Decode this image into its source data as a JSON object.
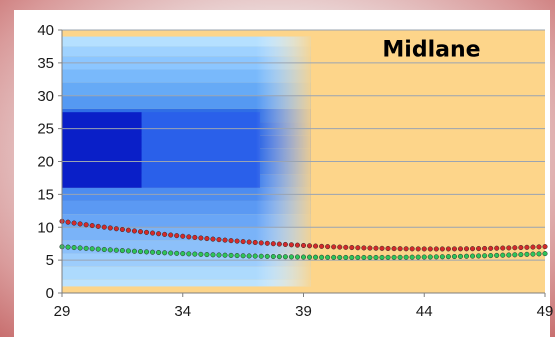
{
  "chart_data": {
    "type": "scatter",
    "title": "",
    "xlabel": "",
    "ylabel": "",
    "xlim": [
      29,
      49
    ],
    "ylim": [
      0,
      40
    ],
    "x_ticks": [
      29,
      34,
      39,
      44,
      49
    ],
    "y_ticks": [
      0,
      5,
      10,
      15,
      20,
      25,
      30,
      35,
      40
    ],
    "x_tick_labels": [
      "29",
      "34",
      "39",
      "44",
      "49"
    ],
    "y_tick_labels": [
      "0",
      "5",
      "10",
      "15",
      "20",
      "25",
      "30",
      "35",
      "40"
    ],
    "grid": "horizontal",
    "legend": "none",
    "annotations": [
      {
        "text": "Midlane",
        "x": 44.3,
        "y": 37.2
      }
    ],
    "regions": [
      {
        "x_from": 29,
        "x_to": 39.3,
        "y_from": 1,
        "y_to": 39,
        "fill": "blue-gradient"
      },
      {
        "x_from": 39.3,
        "x_to": 49,
        "y_from": 0,
        "y_to": 40,
        "fill": "#fdd58a"
      }
    ],
    "series": [
      {
        "color": "#d42a2a",
        "x_from": 29,
        "x_to": 49,
        "step": 0.25,
        "coefficients": {
          "a": 0.0175,
          "h": 44.5,
          "k": 6.7
        }
      },
      {
        "color": "#2ec45a",
        "x_from": 29,
        "x_to": 49,
        "step": 0.25,
        "coefficients": {
          "a": 0.0105,
          "h": 41.5,
          "k": 5.4
        }
      }
    ],
    "colors": {
      "orange_band": "#fdd58a",
      "blue_dark": "#0a1fc8",
      "blue_mid": "#2a60ea",
      "blue_light": "#a8dcff",
      "grid": "#9aa4b2",
      "marker_edge": "#2a2a2a"
    }
  }
}
